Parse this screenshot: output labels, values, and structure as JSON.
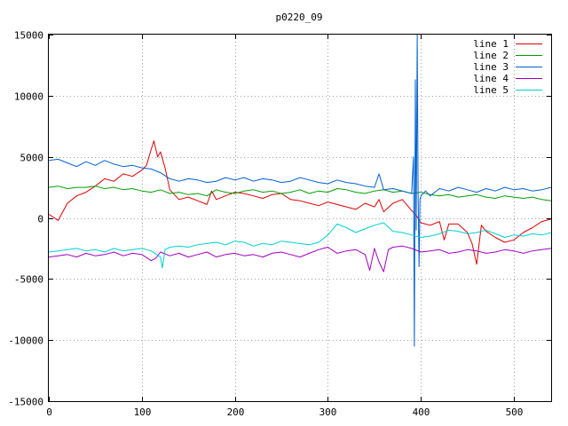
{
  "chart_data": {
    "type": "line",
    "title": "p0220_09",
    "xlabel": "",
    "ylabel": "",
    "xlim": [
      0,
      540
    ],
    "ylim": [
      -15000,
      15000
    ],
    "xticks": [
      0,
      100,
      200,
      300,
      400,
      500
    ],
    "yticks": [
      -15000,
      -10000,
      -5000,
      0,
      5000,
      10000,
      15000
    ],
    "xtick_labels": [
      "0",
      "100",
      "200",
      "300",
      "400",
      "500"
    ],
    "ytick_labels": [
      "-15000",
      "-10000",
      "-5000",
      "0",
      "5000",
      "10000",
      "15000"
    ],
    "grid": true,
    "legend_position": "top-right",
    "series": [
      {
        "name": "line 1",
        "color": "#e00000",
        "x": [
          0,
          10,
          20,
          30,
          40,
          50,
          60,
          70,
          80,
          90,
          100,
          105,
          110,
          113,
          117,
          120,
          125,
          130,
          140,
          150,
          160,
          170,
          175,
          180,
          190,
          200,
          210,
          220,
          230,
          240,
          250,
          260,
          270,
          280,
          290,
          300,
          310,
          320,
          330,
          340,
          350,
          355,
          360,
          370,
          380,
          390,
          395,
          400,
          410,
          420,
          425,
          430,
          440,
          450,
          455,
          460,
          465,
          470,
          480,
          490,
          500,
          510,
          520,
          530,
          540
        ],
        "y": [
          300,
          -200,
          1200,
          1800,
          2100,
          2600,
          3200,
          3000,
          3600,
          3400,
          3900,
          4300,
          5600,
          6300,
          5000,
          5400,
          4100,
          2300,
          1500,
          1700,
          1400,
          1100,
          2200,
          1500,
          1800,
          2100,
          2000,
          1800,
          1600,
          1900,
          2000,
          1500,
          1400,
          1200,
          1000,
          1300,
          1100,
          900,
          700,
          1200,
          900,
          1500,
          500,
          1200,
          1500,
          600,
          200,
          -400,
          -600,
          -300,
          -1800,
          -500,
          -500,
          -1200,
          -2100,
          -3800,
          -600,
          -1100,
          -1600,
          -2000,
          -1800,
          -1200,
          -800,
          -300,
          -100
        ]
      },
      {
        "name": "line 2",
        "color": "#00a000",
        "x": [
          0,
          10,
          20,
          30,
          40,
          50,
          60,
          70,
          80,
          90,
          100,
          110,
          120,
          130,
          140,
          150,
          160,
          170,
          180,
          190,
          200,
          210,
          220,
          230,
          240,
          250,
          260,
          270,
          280,
          290,
          300,
          310,
          320,
          330,
          340,
          350,
          360,
          370,
          380,
          390,
          400,
          410,
          420,
          430,
          440,
          450,
          460,
          470,
          480,
          490,
          500,
          510,
          520,
          530,
          540
        ],
        "y": [
          2500,
          2600,
          2400,
          2500,
          2500,
          2600,
          2400,
          2500,
          2300,
          2400,
          2200,
          2100,
          2300,
          2000,
          2100,
          1900,
          2000,
          1800,
          2300,
          2100,
          2000,
          2200,
          2300,
          2100,
          2200,
          2000,
          2100,
          2300,
          2000,
          2200,
          2100,
          2400,
          2300,
          2100,
          2000,
          2200,
          2300,
          2100,
          2200,
          2000,
          2100,
          1900,
          1800,
          1900,
          1700,
          1800,
          1900,
          1700,
          1600,
          1800,
          1700,
          1600,
          1700,
          1500,
          1400
        ]
      },
      {
        "name": "line 3",
        "color": "#0060d0",
        "x": [
          0,
          10,
          20,
          30,
          40,
          50,
          60,
          70,
          80,
          90,
          100,
          110,
          120,
          130,
          140,
          150,
          160,
          170,
          180,
          190,
          200,
          210,
          220,
          230,
          240,
          250,
          260,
          270,
          280,
          290,
          300,
          310,
          320,
          330,
          340,
          350,
          355,
          360,
          370,
          380,
          390,
          392,
          393,
          394,
          395,
          396,
          397,
          398,
          399,
          400,
          405,
          410,
          420,
          430,
          440,
          450,
          460,
          470,
          480,
          490,
          500,
          510,
          520,
          530,
          540
        ],
        "y": [
          4700,
          4800,
          4500,
          4200,
          4600,
          4300,
          4700,
          4400,
          4200,
          4300,
          4100,
          4000,
          3700,
          3200,
          3000,
          3200,
          3100,
          2900,
          3000,
          3300,
          3100,
          3300,
          3000,
          3200,
          3100,
          2900,
          3000,
          3300,
          3100,
          2900,
          2800,
          3100,
          2900,
          2800,
          2600,
          2500,
          3600,
          2300,
          2400,
          2200,
          2000,
          5000,
          -10500,
          11300,
          -1000,
          15000,
          2000,
          -4000,
          1500,
          1800,
          2200,
          1800,
          2400,
          2200,
          2500,
          2300,
          2100,
          2400,
          2200,
          2500,
          2300,
          2400,
          2200,
          2300,
          2500
        ]
      },
      {
        "name": "line 4",
        "color": "#a000c0",
        "x": [
          0,
          10,
          20,
          30,
          40,
          50,
          60,
          70,
          80,
          90,
          100,
          110,
          115,
          120,
          130,
          140,
          150,
          160,
          170,
          180,
          190,
          200,
          210,
          220,
          230,
          240,
          250,
          260,
          270,
          280,
          290,
          300,
          310,
          320,
          330,
          340,
          345,
          350,
          355,
          360,
          365,
          370,
          380,
          390,
          400,
          410,
          420,
          430,
          440,
          450,
          460,
          470,
          480,
          490,
          500,
          510,
          520,
          530,
          540
        ],
        "y": [
          -3200,
          -3100,
          -3000,
          -3200,
          -2900,
          -3100,
          -3000,
          -2800,
          -3100,
          -2900,
          -3000,
          -3500,
          -3300,
          -2800,
          -3100,
          -2900,
          -3200,
          -3000,
          -2800,
          -3200,
          -3000,
          -2900,
          -3100,
          -3000,
          -3200,
          -2900,
          -2800,
          -3000,
          -3200,
          -2900,
          -2600,
          -2400,
          -2900,
          -2700,
          -2600,
          -3000,
          -4300,
          -2500,
          -3600,
          -4400,
          -2600,
          -2400,
          -2300,
          -2500,
          -2800,
          -2700,
          -2600,
          -2900,
          -2800,
          -2600,
          -2700,
          -2900,
          -2800,
          -2600,
          -2700,
          -2900,
          -2700,
          -2600,
          -2500
        ]
      },
      {
        "name": "line 5",
        "color": "#00d0d0",
        "x": [
          0,
          10,
          20,
          30,
          40,
          50,
          60,
          70,
          80,
          90,
          100,
          110,
          120,
          122,
          125,
          130,
          140,
          150,
          160,
          170,
          180,
          190,
          200,
          210,
          220,
          230,
          240,
          250,
          260,
          270,
          280,
          290,
          300,
          310,
          320,
          330,
          340,
          350,
          360,
          370,
          380,
          390,
          400,
          410,
          420,
          430,
          440,
          450,
          460,
          470,
          480,
          490,
          500,
          510,
          520,
          530,
          540
        ],
        "y": [
          -2800,
          -2700,
          -2600,
          -2500,
          -2700,
          -2600,
          -2800,
          -2500,
          -2700,
          -2600,
          -2500,
          -2700,
          -3200,
          -4100,
          -2600,
          -2400,
          -2300,
          -2400,
          -2200,
          -2100,
          -2000,
          -2200,
          -1900,
          -2000,
          -2300,
          -2100,
          -2200,
          -1900,
          -2000,
          -2100,
          -2200,
          -2000,
          -1400,
          -500,
          -800,
          -1200,
          -900,
          -600,
          -400,
          -1100,
          -1200,
          -1400,
          -1600,
          -1500,
          -1300,
          -1000,
          -1100,
          -1300,
          -1200,
          -1000,
          -1300,
          -1600,
          -1400,
          -1500,
          -1300,
          -1400,
          -1200
        ]
      }
    ]
  }
}
